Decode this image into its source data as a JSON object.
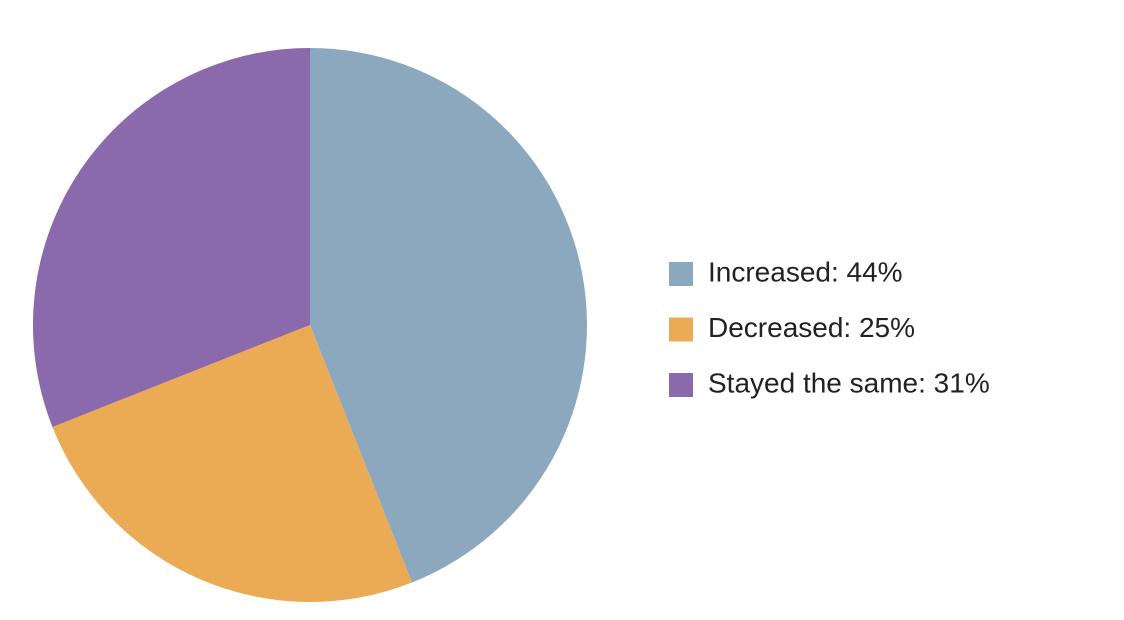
{
  "chart_data": {
    "type": "pie",
    "categories": [
      "Increased: 44%",
      "Decreased: 25%",
      "Stayed the same: 31%"
    ],
    "values": [
      44,
      25,
      31
    ],
    "colors": [
      "#8ca8bf",
      "#ebab55",
      "#8a6aac"
    ],
    "legend": "right"
  }
}
